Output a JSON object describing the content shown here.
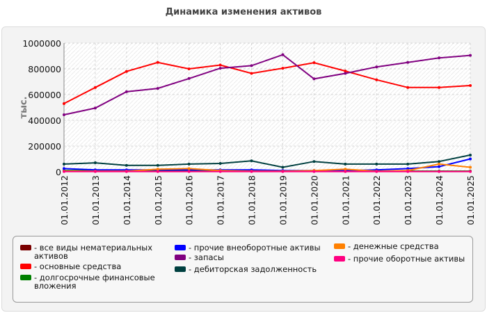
{
  "chart_data": {
    "type": "line",
    "title": "Динамика изменения активов",
    "ylabel": "тыс.",
    "ylim": [
      0,
      1000000
    ],
    "yticks": [
      0,
      200000,
      400000,
      600000,
      800000,
      1000000
    ],
    "ytick_labels": [
      "0",
      "200000",
      "400000",
      "600000",
      "800000",
      "1000000"
    ],
    "grid": true,
    "legend_position": "bottom",
    "categories": [
      "01.01.2012",
      "01.01.2013",
      "01.01.2014",
      "01.01.2015",
      "01.01.2016",
      "01.01.2017",
      "01.01.2018",
      "01.01.2019",
      "01.01.2020",
      "01.01.2021",
      "01.01.2022",
      "01.01.2023",
      "01.01.2024",
      "01.01.2025"
    ],
    "series": [
      {
        "name": "- все виды нематериальных активов",
        "color": "#7a0000",
        "values": [
          5000,
          5000,
          5000,
          5000,
          5000,
          5000,
          5000,
          5000,
          5000,
          5000,
          5000,
          5000,
          5000,
          5000
        ]
      },
      {
        "name": "- основные средства",
        "color": "#ff0000",
        "values": [
          530000,
          655000,
          780000,
          850000,
          800000,
          830000,
          765000,
          805000,
          848000,
          783000,
          715000,
          655000,
          655000,
          670000
        ]
      },
      {
        "name": "- долгосрочные финансовые вложения",
        "color": "#008000",
        "values": [
          10000,
          10000,
          10000,
          10000,
          10000,
          10000,
          5000,
          5000,
          5000,
          5000,
          5000,
          5000,
          5000,
          5000
        ]
      },
      {
        "name": "- прочие внеоборотные активы",
        "color": "#0000ff",
        "values": [
          25000,
          15000,
          15000,
          15000,
          15000,
          15000,
          15000,
          10000,
          10000,
          10000,
          15000,
          25000,
          40000,
          100000
        ]
      },
      {
        "name": "- запасы",
        "color": "#800080",
        "values": [
          443000,
          495000,
          622000,
          648000,
          725000,
          805000,
          825000,
          910000,
          722000,
          765000,
          815000,
          850000,
          885000,
          905000
        ]
      },
      {
        "name": "- дебиторская задолженность",
        "color": "#004040",
        "values": [
          60000,
          70000,
          50000,
          50000,
          60000,
          65000,
          85000,
          35000,
          80000,
          60000,
          60000,
          60000,
          80000,
          130000
        ]
      },
      {
        "name": "- денежные средства",
        "color": "#ff8000",
        "values": [
          5000,
          5000,
          5000,
          20000,
          25000,
          10000,
          5000,
          5000,
          10000,
          20000,
          5000,
          10000,
          60000,
          35000
        ]
      },
      {
        "name": "- прочие оборотные активы",
        "color": "#ff0080",
        "values": [
          2000,
          2000,
          2000,
          2000,
          2000,
          2000,
          2000,
          2000,
          2000,
          2000,
          2000,
          2000,
          2000,
          2000
        ]
      }
    ]
  }
}
